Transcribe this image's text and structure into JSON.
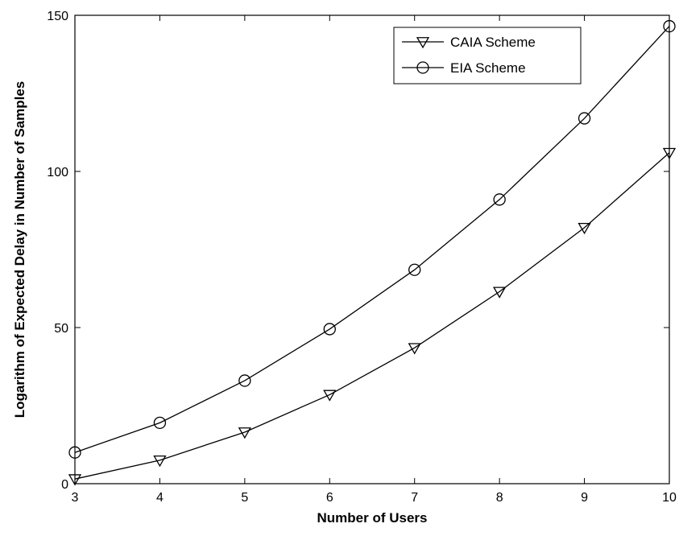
{
  "chart_data": {
    "type": "line",
    "title": "",
    "xlabel": "Number of Users",
    "ylabel": "Logarithm of Expected Delay in Number of Samples",
    "x": [
      3,
      4,
      5,
      6,
      7,
      8,
      9,
      10
    ],
    "xlim": [
      3,
      10
    ],
    "ylim": [
      0,
      150
    ],
    "xticks": [
      "3",
      "4",
      "5",
      "6",
      "7",
      "8",
      "9",
      "10"
    ],
    "yticks": [
      "0",
      "50",
      "100",
      "150"
    ],
    "xtick_values": [
      3,
      4,
      5,
      6,
      7,
      8,
      9,
      10
    ],
    "ytick_values": [
      0,
      50,
      100,
      150
    ],
    "grid": true,
    "legend_position": "top-right",
    "series": [
      {
        "name": "CAIA Scheme",
        "marker": "triangle-down",
        "color": "#000000",
        "values": [
          1.5,
          7.5,
          16.5,
          28.5,
          43.5,
          61.5,
          82,
          106
        ]
      },
      {
        "name": "EIA Scheme",
        "marker": "circle",
        "color": "#000000",
        "values": [
          10,
          19.5,
          33,
          49.5,
          68.5,
          91,
          117,
          146.5
        ]
      }
    ]
  }
}
